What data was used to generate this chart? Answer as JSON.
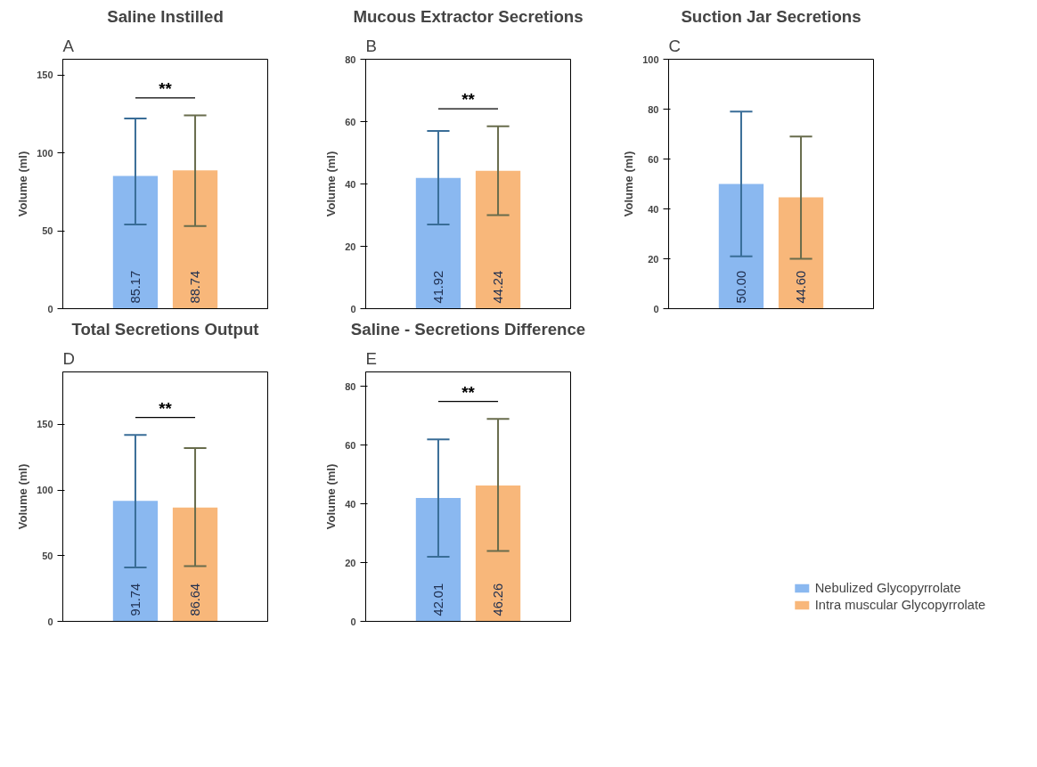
{
  "chart_data": [
    {
      "type": "bar",
      "title": "Saline Instilled",
      "ylabel": "Volume (ml)",
      "annotations": [
        "A",
        "**"
      ],
      "categories": [
        null
      ],
      "ylim": [
        0,
        160
      ],
      "yticks": [
        0,
        50,
        100,
        150
      ],
      "grid": false,
      "series": [
        {
          "color": "#8ab8f0",
          "values": [
            85.17
          ],
          "value_labels": [
            "85.17"
          ],
          "errors": [
            [
              54,
              122
            ]
          ]
        },
        {
          "color": "#f8b77a",
          "values": [
            88.74
          ],
          "value_labels": [
            "88.74"
          ],
          "errors": [
            [
              53,
              124
            ]
          ]
        }
      ]
    },
    {
      "type": "bar",
      "title": "Mucous Extractor Secretions",
      "ylabel": "Volume (ml)",
      "annotations": [
        "B",
        "**"
      ],
      "categories": [
        null
      ],
      "ylim": [
        0,
        80
      ],
      "yticks": [
        0,
        20,
        40,
        60,
        80
      ],
      "grid": false,
      "series": [
        {
          "color": "#8ab8f0",
          "values": [
            41.92
          ],
          "value_labels": [
            "41.92"
          ],
          "errors": [
            [
              27,
              57
            ]
          ]
        },
        {
          "color": "#f8b77a",
          "values": [
            44.24
          ],
          "value_labels": [
            "44.24"
          ],
          "errors": [
            [
              30,
              58.5
            ]
          ]
        }
      ]
    },
    {
      "type": "bar",
      "title": "Suction Jar Secretions",
      "ylabel": "Volume (ml)",
      "annotations": [
        "C"
      ],
      "categories": [
        null
      ],
      "ylim": [
        0,
        100
      ],
      "yticks": [
        0,
        20,
        40,
        60,
        80,
        100
      ],
      "grid": false,
      "series": [
        {
          "color": "#8ab8f0",
          "values": [
            50.0
          ],
          "value_labels": [
            "50.00"
          ],
          "errors": [
            [
              21,
              79
            ]
          ]
        },
        {
          "color": "#f8b77a",
          "values": [
            44.6
          ],
          "value_labels": [
            "44.60"
          ],
          "errors": [
            [
              20,
              69
            ]
          ]
        }
      ]
    },
    {
      "type": "bar",
      "title": "Total Secretions Output",
      "ylabel": "Volume (ml)",
      "annotations": [
        "D",
        "**"
      ],
      "categories": [
        null
      ],
      "ylim": [
        0,
        190
      ],
      "yticks": [
        0,
        50,
        100,
        150
      ],
      "grid": false,
      "series": [
        {
          "color": "#8ab8f0",
          "values": [
            91.74
          ],
          "value_labels": [
            "91.74"
          ],
          "errors": [
            [
              41,
              142
            ]
          ]
        },
        {
          "color": "#f8b77a",
          "values": [
            86.64
          ],
          "value_labels": [
            "86.64"
          ],
          "errors": [
            [
              42,
              132
            ]
          ]
        }
      ]
    },
    {
      "type": "bar",
      "title": "Saline - Secretions Difference",
      "ylabel": "Volume (ml)",
      "annotations": [
        "E",
        "**"
      ],
      "categories": [
        null
      ],
      "ylim": [
        0,
        85
      ],
      "yticks": [
        0,
        20,
        40,
        60,
        80
      ],
      "grid": false,
      "legend": "bottom right",
      "series": [
        {
          "name": "Nebulized Glycopyrrolate",
          "color": "#8ab8f0",
          "values": [
            42.01
          ],
          "value_labels": [
            "42.01"
          ],
          "errors": [
            [
              22,
              62
            ]
          ]
        },
        {
          "name": "Intra muscular Glycopyrrolate",
          "color": "#f8b77a",
          "values": [
            46.26
          ],
          "value_labels": [
            "46.26"
          ],
          "errors": [
            [
              24,
              69
            ]
          ]
        }
      ]
    }
  ]
}
